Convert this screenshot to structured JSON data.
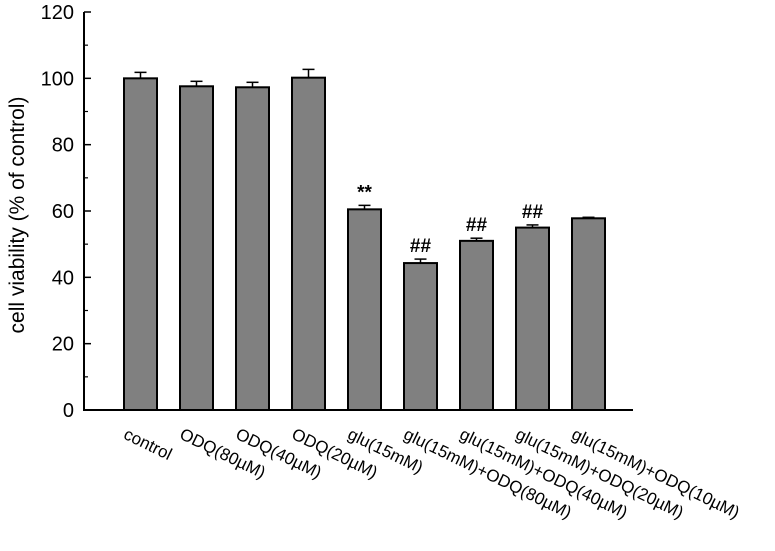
{
  "chart_data": {
    "type": "bar",
    "title": "",
    "xlabel": "",
    "ylabel": "cell viability (% of control)",
    "ylim": [
      0,
      120
    ],
    "yticks": [
      0,
      20,
      40,
      60,
      80,
      100,
      120
    ],
    "grid": false,
    "legend": null,
    "bar_color": "#808080",
    "categories": [
      "control",
      "ODQ(80µM)",
      "ODQ(40µM)",
      "ODQ(20µM)",
      "glu(15mM)",
      "glu(15mM)+ODQ(80µM)",
      "glu(15mM)+ODQ(40µM)",
      "glu(15mM)+ODQ(20µM)",
      "glu(15mM)+ODQ(10µM)"
    ],
    "values": [
      100.0,
      97.6,
      97.3,
      100.2,
      60.5,
      44.3,
      51.0,
      55.0,
      57.8
    ],
    "errors": [
      1.8,
      1.5,
      1.5,
      2.5,
      1.2,
      1.2,
      0.8,
      0.8,
      0.3
    ],
    "annotations": [
      "",
      "",
      "",
      "",
      "**",
      "##",
      "##",
      "##",
      ""
    ]
  }
}
